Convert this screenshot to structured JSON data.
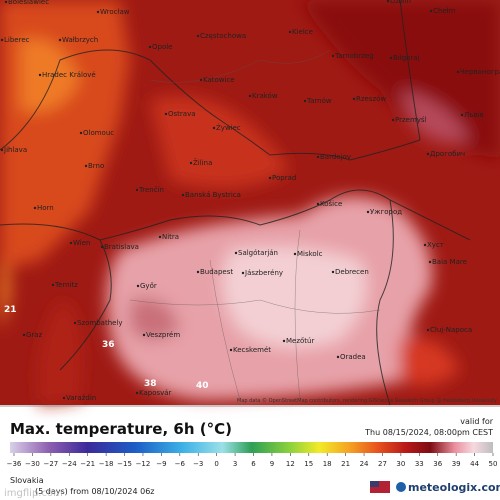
{
  "map_labels": [
    "Boleslawiec",
    "Wrocław",
    "Liberec",
    "Wałbrzych",
    "Opole",
    "Częstochowa",
    "Kielce",
    "Lublin",
    "Chełm",
    "Tarnobrzeg",
    "Biłgoraj",
    "Червоноград",
    "Hradec Králové",
    "Katowice",
    "Ostrava",
    "Kraków",
    "Tarnów",
    "Rzeszów",
    "Львів",
    "Przemyśl",
    "Olomouc",
    "Jihlava",
    "Żywiec",
    "Brno",
    "Žilina",
    "Poprad",
    "Bardejov",
    "Дрогобич",
    "Trenčín",
    "Banská Bystrica",
    "Košice",
    "Horn",
    "Ужгород",
    "Nitra",
    "Wien",
    "Bratislava",
    "Salgótarján",
    "Miskolc",
    "Хуст",
    "Ternitz",
    "Győr",
    "Budapest",
    "Jászberény",
    "Debrecen",
    "Baia Mare",
    "Szombathely",
    "Veszprém",
    "Kecskemét",
    "Mezőtúr",
    "Oradea",
    "Cluj-Napoca",
    "Graz",
    "Kaposvár",
    "Varaždin"
  ],
  "map_values": [
    "36",
    "38",
    "40",
    "21"
  ],
  "attribution": "Map data © OpenStreetMap contributors, rendering GIScience Research Group @ Heidelberg University",
  "legend": {
    "title": "Max. temperature, 6h (°C)",
    "valid_label": "valid for",
    "valid_time": "Thu 08/15/2024, 08:00pm CEST",
    "ticks": [
      "−36",
      "−30",
      "−27",
      "−24",
      "−21",
      "−18",
      "−15",
      "−12",
      "−9",
      "−6",
      "−3",
      "0",
      "3",
      "6",
      "9",
      "12",
      "15",
      "18",
      "21",
      "24",
      "27",
      "30",
      "33",
      "36",
      "39",
      "44",
      "50"
    ]
  },
  "footer": {
    "region": "Slovakia",
    "run": "(5 days) from 08/10/2024 06z",
    "watermark": "imgflip.com",
    "logo": "meteologix.com"
  }
}
